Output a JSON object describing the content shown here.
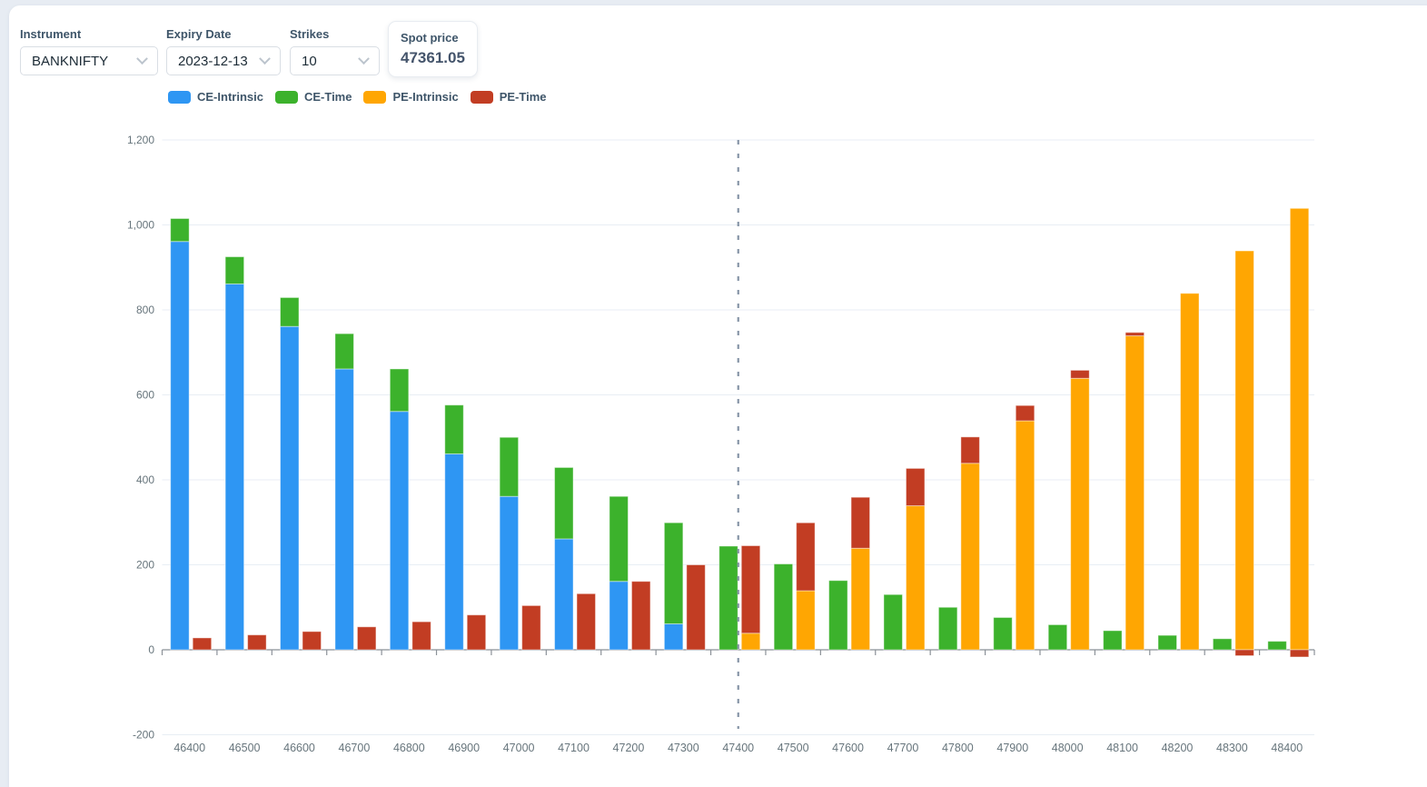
{
  "controls": {
    "instrument": {
      "label": "Instrument",
      "value": "BANKNIFTY"
    },
    "expiry": {
      "label": "Expiry Date",
      "value": "2023-12-13"
    },
    "strikes": {
      "label": "Strikes",
      "value": "10"
    },
    "spot": {
      "label": "Spot price",
      "value": "47361.05"
    }
  },
  "legend": [
    {
      "label": "CE-Intrinsic",
      "color": "#2e96f3"
    },
    {
      "label": "CE-Time",
      "color": "#3cb22c"
    },
    {
      "label": "PE-Intrinsic",
      "color": "#ffa602"
    },
    {
      "label": "PE-Time",
      "color": "#c23d23"
    }
  ],
  "chart_data": {
    "type": "bar",
    "stacked": true,
    "categories": [
      46400,
      46500,
      46600,
      46700,
      46800,
      46900,
      47000,
      47100,
      47200,
      47300,
      47400,
      47500,
      47600,
      47700,
      47800,
      47900,
      48000,
      48100,
      48200,
      48300,
      48400
    ],
    "series": [
      {
        "name": "CE-Intrinsic",
        "stack": "CE",
        "color": "#2e96f3",
        "values": [
          961.05,
          861.05,
          761.05,
          661.05,
          561.05,
          461.05,
          361.05,
          261.05,
          161.05,
          61.05,
          0,
          0,
          0,
          0,
          0,
          0,
          0,
          0,
          0,
          0,
          0
        ]
      },
      {
        "name": "CE-Time",
        "stack": "CE",
        "color": "#3cb22c",
        "values": [
          54,
          64,
          68,
          83,
          100,
          115,
          139,
          168,
          200,
          238,
          244,
          202,
          163,
          130,
          100,
          76,
          59,
          45,
          34,
          26,
          20
        ]
      },
      {
        "name": "PE-Intrinsic",
        "stack": "PE",
        "color": "#ffa602",
        "values": [
          0,
          0,
          0,
          0,
          0,
          0,
          0,
          0,
          0,
          0,
          38.95,
          138.95,
          238.95,
          338.95,
          438.95,
          538.95,
          638.95,
          738.95,
          838.95,
          938.95,
          1038.95
        ]
      },
      {
        "name": "PE-Time",
        "stack": "PE",
        "color": "#c23d23",
        "values": [
          28,
          35,
          43,
          54,
          66,
          82,
          104,
          132,
          161,
          200,
          206,
          160,
          120,
          88,
          62,
          36,
          19,
          8,
          0,
          -14,
          -17
        ]
      }
    ],
    "title": "",
    "xlabel": "",
    "ylabel": "",
    "ylim": [
      -200,
      1200
    ],
    "ytick_step": 200,
    "yticks": [
      "-200",
      "0",
      "200",
      "400",
      "600",
      "800",
      "1,000",
      "1,200"
    ],
    "grid": "horizontal-only",
    "legend_position": "top-left",
    "spot_line_strike": 47400,
    "grid_color": "#e8eef4",
    "axis_color": "#8b9198",
    "tick_text_color": "#67757c",
    "spot_line_color": "#8795a7"
  }
}
